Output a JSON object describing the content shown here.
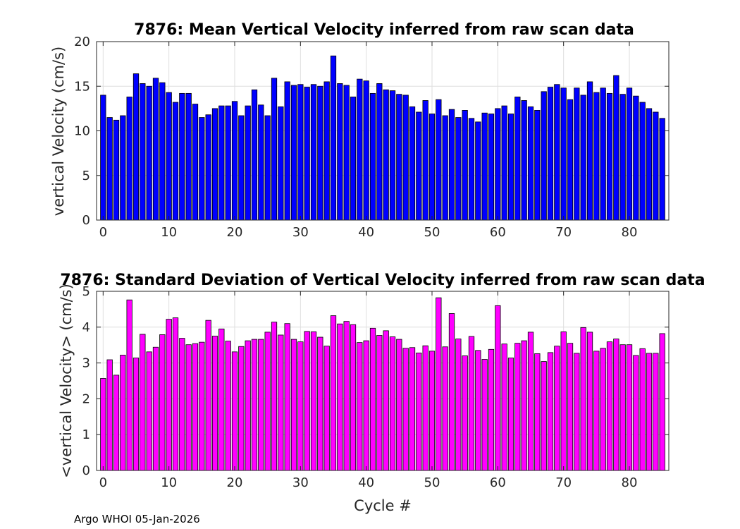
{
  "chart_data": [
    {
      "type": "bar",
      "title": "7876: Mean Vertical Velocity inferred from raw scan data",
      "xlabel": "",
      "ylabel": "vertical Velocity (cm/s)",
      "xlim": [
        -1,
        86
      ],
      "ylim": [
        0,
        20
      ],
      "xticks": [
        0,
        10,
        20,
        30,
        40,
        50,
        60,
        70,
        80
      ],
      "yticks": [
        0,
        5,
        10,
        15,
        20
      ],
      "grid": true,
      "color": "#0000ff",
      "x": [
        0,
        1,
        2,
        3,
        4,
        5,
        6,
        7,
        8,
        9,
        10,
        11,
        12,
        13,
        14,
        15,
        16,
        17,
        18,
        19,
        20,
        21,
        22,
        23,
        24,
        25,
        26,
        27,
        28,
        29,
        30,
        31,
        32,
        33,
        34,
        35,
        36,
        37,
        38,
        39,
        40,
        41,
        42,
        43,
        44,
        45,
        46,
        47,
        48,
        49,
        50,
        51,
        52,
        53,
        54,
        55,
        56,
        57,
        58,
        59,
        60,
        61,
        62,
        63,
        64,
        65,
        66,
        67,
        68,
        69,
        70,
        71,
        72,
        73,
        74,
        75,
        76,
        77,
        78,
        79,
        80,
        81,
        82,
        83,
        84,
        85
      ],
      "values": [
        14.0,
        11.5,
        11.2,
        11.7,
        13.8,
        16.4,
        15.3,
        15.0,
        15.9,
        15.4,
        14.3,
        13.2,
        14.2,
        14.2,
        13.0,
        11.5,
        11.8,
        12.5,
        12.8,
        12.8,
        13.3,
        11.7,
        12.8,
        14.6,
        12.9,
        11.7,
        15.9,
        12.7,
        15.5,
        15.1,
        15.2,
        14.9,
        15.2,
        15.0,
        15.5,
        18.4,
        15.3,
        15.1,
        13.8,
        15.8,
        15.6,
        14.2,
        15.3,
        14.6,
        14.5,
        14.1,
        14.0,
        12.7,
        12.1,
        13.4,
        11.9,
        13.5,
        11.7,
        12.4,
        11.5,
        12.3,
        11.4,
        11.0,
        12.0,
        11.9,
        12.5,
        12.8,
        11.9,
        13.8,
        13.4,
        12.7,
        12.3,
        14.4,
        14.9,
        15.2,
        14.8,
        13.5,
        14.8,
        14.0,
        15.5,
        14.3,
        14.8,
        14.2,
        16.2,
        14.1,
        14.8,
        13.9,
        13.2,
        12.5,
        12.1,
        11.4
      ]
    },
    {
      "type": "bar",
      "title": "7876: Standard Deviation of Vertical Velocity inferred from raw scan data",
      "xlabel": "Cycle #",
      "ylabel": "<vertical Velocity> (cm/s)",
      "xlim": [
        -1,
        86
      ],
      "ylim": [
        0,
        5
      ],
      "xticks": [
        0,
        10,
        20,
        30,
        40,
        50,
        60,
        70,
        80
      ],
      "yticks": [
        0,
        1,
        2,
        3,
        4,
        5
      ],
      "grid": true,
      "color": "#ff00ff",
      "x": [
        0,
        1,
        2,
        3,
        4,
        5,
        6,
        7,
        8,
        9,
        10,
        11,
        12,
        13,
        14,
        15,
        16,
        17,
        18,
        19,
        20,
        21,
        22,
        23,
        24,
        25,
        26,
        27,
        28,
        29,
        30,
        31,
        32,
        33,
        34,
        35,
        36,
        37,
        38,
        39,
        40,
        41,
        42,
        43,
        44,
        45,
        46,
        47,
        48,
        49,
        50,
        51,
        52,
        53,
        54,
        55,
        56,
        57,
        58,
        59,
        60,
        61,
        62,
        63,
        64,
        65,
        66,
        67,
        68,
        69,
        70,
        71,
        72,
        73,
        74,
        75,
        76,
        77,
        78,
        79,
        80,
        81,
        82,
        83,
        84,
        85
      ],
      "values": [
        2.57,
        3.09,
        2.66,
        3.22,
        4.76,
        3.14,
        3.8,
        3.31,
        3.44,
        3.79,
        4.22,
        4.26,
        3.69,
        3.51,
        3.54,
        3.58,
        4.19,
        3.75,
        3.95,
        3.61,
        3.31,
        3.46,
        3.62,
        3.66,
        3.66,
        3.86,
        4.14,
        3.78,
        4.1,
        3.66,
        3.59,
        3.88,
        3.87,
        3.72,
        3.47,
        4.32,
        4.09,
        4.16,
        4.07,
        3.57,
        3.62,
        3.97,
        3.77,
        3.9,
        3.73,
        3.66,
        3.41,
        3.43,
        3.28,
        3.48,
        3.33,
        4.82,
        3.45,
        4.38,
        3.67,
        3.2,
        3.74,
        3.35,
        3.1,
        3.38,
        4.6,
        3.53,
        3.14,
        3.55,
        3.62,
        3.86,
        3.26,
        3.04,
        3.29,
        3.47,
        3.87,
        3.55,
        3.27,
        3.99,
        3.86,
        3.33,
        3.41,
        3.59,
        3.67,
        3.51,
        3.51,
        3.21,
        3.4,
        3.27,
        3.27,
        3.82
      ]
    }
  ],
  "footer": "Argo WHOI 05-Jan-2026"
}
